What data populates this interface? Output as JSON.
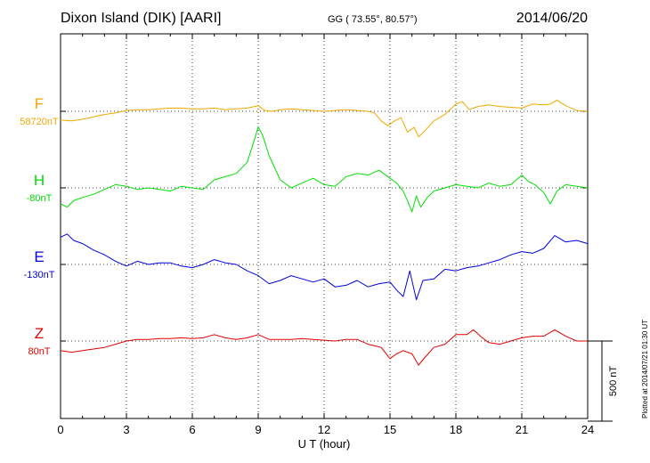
{
  "header": {
    "station": "Dixon Island (DIK)  [AARI]",
    "coords": "GG ( 73.55°,  80.57°)",
    "date": "2014/06/20"
  },
  "plotted": "Plotted at 2014/07/21 01:30 UT",
  "colors": {
    "F": "#f0a800",
    "H": "#00e000",
    "E": "#0000e0",
    "Z": "#e00000",
    "axis": "#000000",
    "grid": "#000000"
  },
  "chart_data": {
    "type": "line",
    "xlabel": "U T (hour)",
    "xlim": [
      0,
      24
    ],
    "xticks": [
      0,
      3,
      6,
      9,
      12,
      15,
      18,
      21,
      24
    ],
    "scale_bar_label": "500 nT",
    "scale_bar_nT": 500,
    "series": [
      {
        "name": "F",
        "baseline_label": "58720nT",
        "color": "#f0a800",
        "x": [
          0,
          0.5,
          1,
          1.5,
          2,
          2.5,
          3,
          3.5,
          4,
          4.5,
          5,
          5.5,
          6,
          6.5,
          7,
          7.5,
          8,
          8.5,
          9,
          9.3,
          9.6,
          10,
          10.5,
          11,
          11.5,
          12,
          12.5,
          13,
          13.5,
          14,
          14.3,
          14.6,
          14.9,
          15.2,
          15.5,
          15.8,
          16.1,
          16.3,
          16.6,
          17,
          17.5,
          18,
          18.3,
          18.6,
          19,
          19.5,
          20,
          20.5,
          21,
          21.5,
          22,
          22.3,
          22.6,
          23,
          23.5,
          24
        ],
        "y": [
          -55,
          -60,
          -50,
          -35,
          -20,
          -10,
          5,
          10,
          10,
          15,
          20,
          20,
          15,
          15,
          20,
          10,
          15,
          20,
          35,
          5,
          0,
          10,
          15,
          10,
          5,
          0,
          5,
          10,
          5,
          0,
          -10,
          -60,
          -90,
          -60,
          -40,
          -130,
          -100,
          -160,
          -120,
          -60,
          -20,
          45,
          60,
          10,
          30,
          40,
          30,
          25,
          20,
          45,
          40,
          45,
          70,
          35,
          5,
          0
        ]
      },
      {
        "name": "H",
        "baseline_label": "-80nT",
        "color": "#00e000",
        "x": [
          0,
          0.3,
          0.6,
          1,
          1.5,
          2,
          2.5,
          3,
          3.5,
          4,
          4.5,
          5,
          5.5,
          6,
          6.5,
          7,
          7.5,
          8,
          8.5,
          8.8,
          9,
          9.2,
          9.5,
          10,
          10.5,
          11,
          11.5,
          12,
          12.5,
          13,
          13.5,
          14,
          14.5,
          15,
          15.3,
          15.6,
          15.8,
          16,
          16.2,
          16.4,
          16.7,
          17,
          17.5,
          18,
          18.5,
          19,
          19.5,
          20,
          20.5,
          21,
          21.3,
          21.6,
          22,
          22.3,
          22.6,
          23,
          23.5,
          24
        ],
        "y": [
          -100,
          -120,
          -80,
          -60,
          -40,
          -10,
          20,
          10,
          -10,
          0,
          -10,
          -20,
          10,
          0,
          -10,
          50,
          70,
          90,
          160,
          290,
          380,
          330,
          200,
          50,
          0,
          30,
          60,
          20,
          10,
          70,
          90,
          80,
          110,
          60,
          30,
          -20,
          -80,
          -150,
          -50,
          -120,
          -60,
          -20,
          0,
          20,
          10,
          0,
          30,
          10,
          20,
          80,
          40,
          20,
          -30,
          -100,
          -20,
          20,
          10,
          0
        ]
      },
      {
        "name": "E",
        "baseline_label": "-130nT",
        "color": "#0000e0",
        "x": [
          0,
          0.3,
          0.6,
          1,
          1.5,
          2,
          2.5,
          3,
          3.5,
          4,
          4.5,
          5,
          5.5,
          6,
          6.5,
          7,
          7.5,
          8,
          8.5,
          9,
          9.5,
          10,
          10.5,
          11,
          11.5,
          12,
          12.5,
          13,
          13.5,
          14,
          14.5,
          15,
          15.3,
          15.6,
          15.9,
          16.2,
          16.5,
          17,
          17.5,
          18,
          18.5,
          19,
          19.5,
          20,
          20.5,
          21,
          21.5,
          22,
          22.5,
          23,
          23.5,
          24
        ],
        "y": [
          170,
          190,
          150,
          130,
          90,
          60,
          20,
          -10,
          20,
          0,
          10,
          10,
          -10,
          -20,
          0,
          30,
          10,
          0,
          -40,
          -70,
          -120,
          -100,
          -70,
          -90,
          -110,
          -90,
          -140,
          -130,
          -100,
          -140,
          -120,
          -110,
          -160,
          -200,
          -40,
          -220,
          -100,
          -90,
          -30,
          -40,
          -20,
          -10,
          10,
          30,
          60,
          80,
          70,
          100,
          180,
          140,
          150,
          130
        ]
      },
      {
        "name": "Z",
        "baseline_label": "80nT",
        "color": "#e00000",
        "x": [
          0,
          0.5,
          1,
          1.5,
          2,
          2.5,
          3,
          3.5,
          4,
          4.5,
          5,
          5.5,
          6,
          6.5,
          7,
          7.5,
          8,
          8.5,
          9,
          9.5,
          10,
          10.5,
          11,
          11.5,
          12,
          12.5,
          13,
          13.5,
          14,
          14.3,
          14.6,
          15,
          15.3,
          15.6,
          16,
          16.3,
          16.6,
          17,
          17.5,
          18,
          18.5,
          18.8,
          19.2,
          19.5,
          20,
          20.5,
          21,
          21.5,
          22,
          22.5,
          23,
          23.5,
          24
        ],
        "y": [
          -60,
          -70,
          -60,
          -50,
          -40,
          -20,
          0,
          10,
          10,
          15,
          15,
          20,
          15,
          20,
          40,
          20,
          10,
          20,
          40,
          10,
          10,
          10,
          15,
          10,
          5,
          0,
          10,
          10,
          -20,
          -30,
          -40,
          -110,
          -80,
          -60,
          -80,
          -150,
          -100,
          -40,
          -20,
          40,
          40,
          70,
          20,
          -10,
          -20,
          0,
          20,
          30,
          30,
          70,
          30,
          0,
          0
        ]
      }
    ]
  }
}
